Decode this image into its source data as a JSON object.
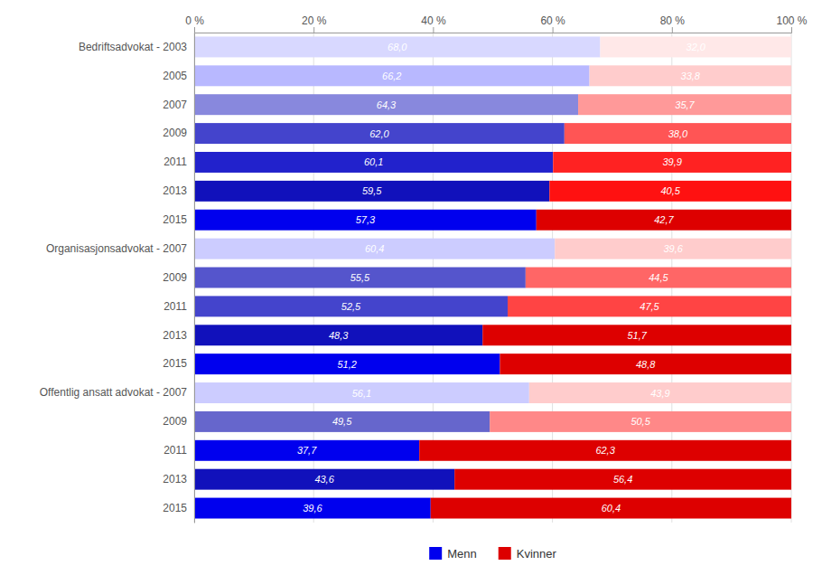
{
  "chart_data": {
    "type": "bar",
    "orientation": "horizontal",
    "stacked": true,
    "grid": true,
    "legend": "bottom",
    "data_labels": true,
    "categories": [
      "Bedriftsadvokat - 2003",
      "2005",
      "2007",
      "2009",
      "2011",
      "2013",
      "2015",
      "Organisasjonsadvokat - 2007",
      "2009",
      "2011",
      "2013",
      "2015",
      "Offentlig ansatt advokat - 2007",
      "2009",
      "2011",
      "2013",
      "2015"
    ],
    "series": [
      {
        "name": "Menn",
        "color": "#0000ee",
        "colors": [
          "#d8d8ff",
          "#b8b8ff",
          "#8888dd",
          "#4444cc",
          "#2222cc",
          "#1111bb",
          "#0000ee",
          "#ccccff",
          "#5555cc",
          "#4444cc",
          "#1111bb",
          "#0000ee",
          "#ccccff",
          "#6666cc",
          "#0000ee",
          "#1111bb",
          "#0000ee"
        ],
        "values": [
          68.0,
          66.2,
          64.3,
          62.0,
          60.1,
          59.5,
          57.3,
          60.4,
          55.5,
          52.5,
          48.3,
          51.2,
          56.1,
          49.5,
          37.7,
          43.6,
          39.6
        ],
        "value_labels": [
          "68,0",
          "66,2",
          "64,3",
          "62,0",
          "60,1",
          "59,5",
          "57,3",
          "60,4",
          "55,5",
          "52,5",
          "48,3",
          "51,2",
          "56,1",
          "49,5",
          "37,7",
          "43,6",
          "39,6"
        ]
      },
      {
        "name": "Kvinner",
        "color": "#dd0000",
        "colors": [
          "#ffe8e8",
          "#ffcccc",
          "#ff9999",
          "#ff5555",
          "#ff2222",
          "#ff1111",
          "#dd0000",
          "#ffcccc",
          "#ff6666",
          "#ff4444",
          "#dd0000",
          "#dd0000",
          "#ffcccc",
          "#ff8888",
          "#dd0000",
          "#dd0000",
          "#dd0000"
        ],
        "values": [
          32.0,
          33.8,
          35.7,
          38.0,
          39.9,
          40.5,
          42.7,
          39.6,
          44.5,
          47.5,
          51.7,
          48.8,
          43.9,
          50.5,
          62.3,
          56.4,
          60.4
        ],
        "value_labels": [
          "32,0",
          "33,8",
          "35,7",
          "38,0",
          "39,9",
          "40,5",
          "42,7",
          "39,6",
          "44,5",
          "47,5",
          "51,7",
          "48,8",
          "43,9",
          "50,5",
          "62,3",
          "56,4",
          "60,4"
        ]
      }
    ],
    "xlim": [
      0,
      100
    ],
    "xticks": [
      {
        "value": 0,
        "label": "0 %"
      },
      {
        "value": 20,
        "label": "20 %"
      },
      {
        "value": 40,
        "label": "40 %"
      },
      {
        "value": 60,
        "label": "60 %"
      },
      {
        "value": 80,
        "label": "80 %"
      },
      {
        "value": 100,
        "label": "100 %"
      }
    ]
  }
}
